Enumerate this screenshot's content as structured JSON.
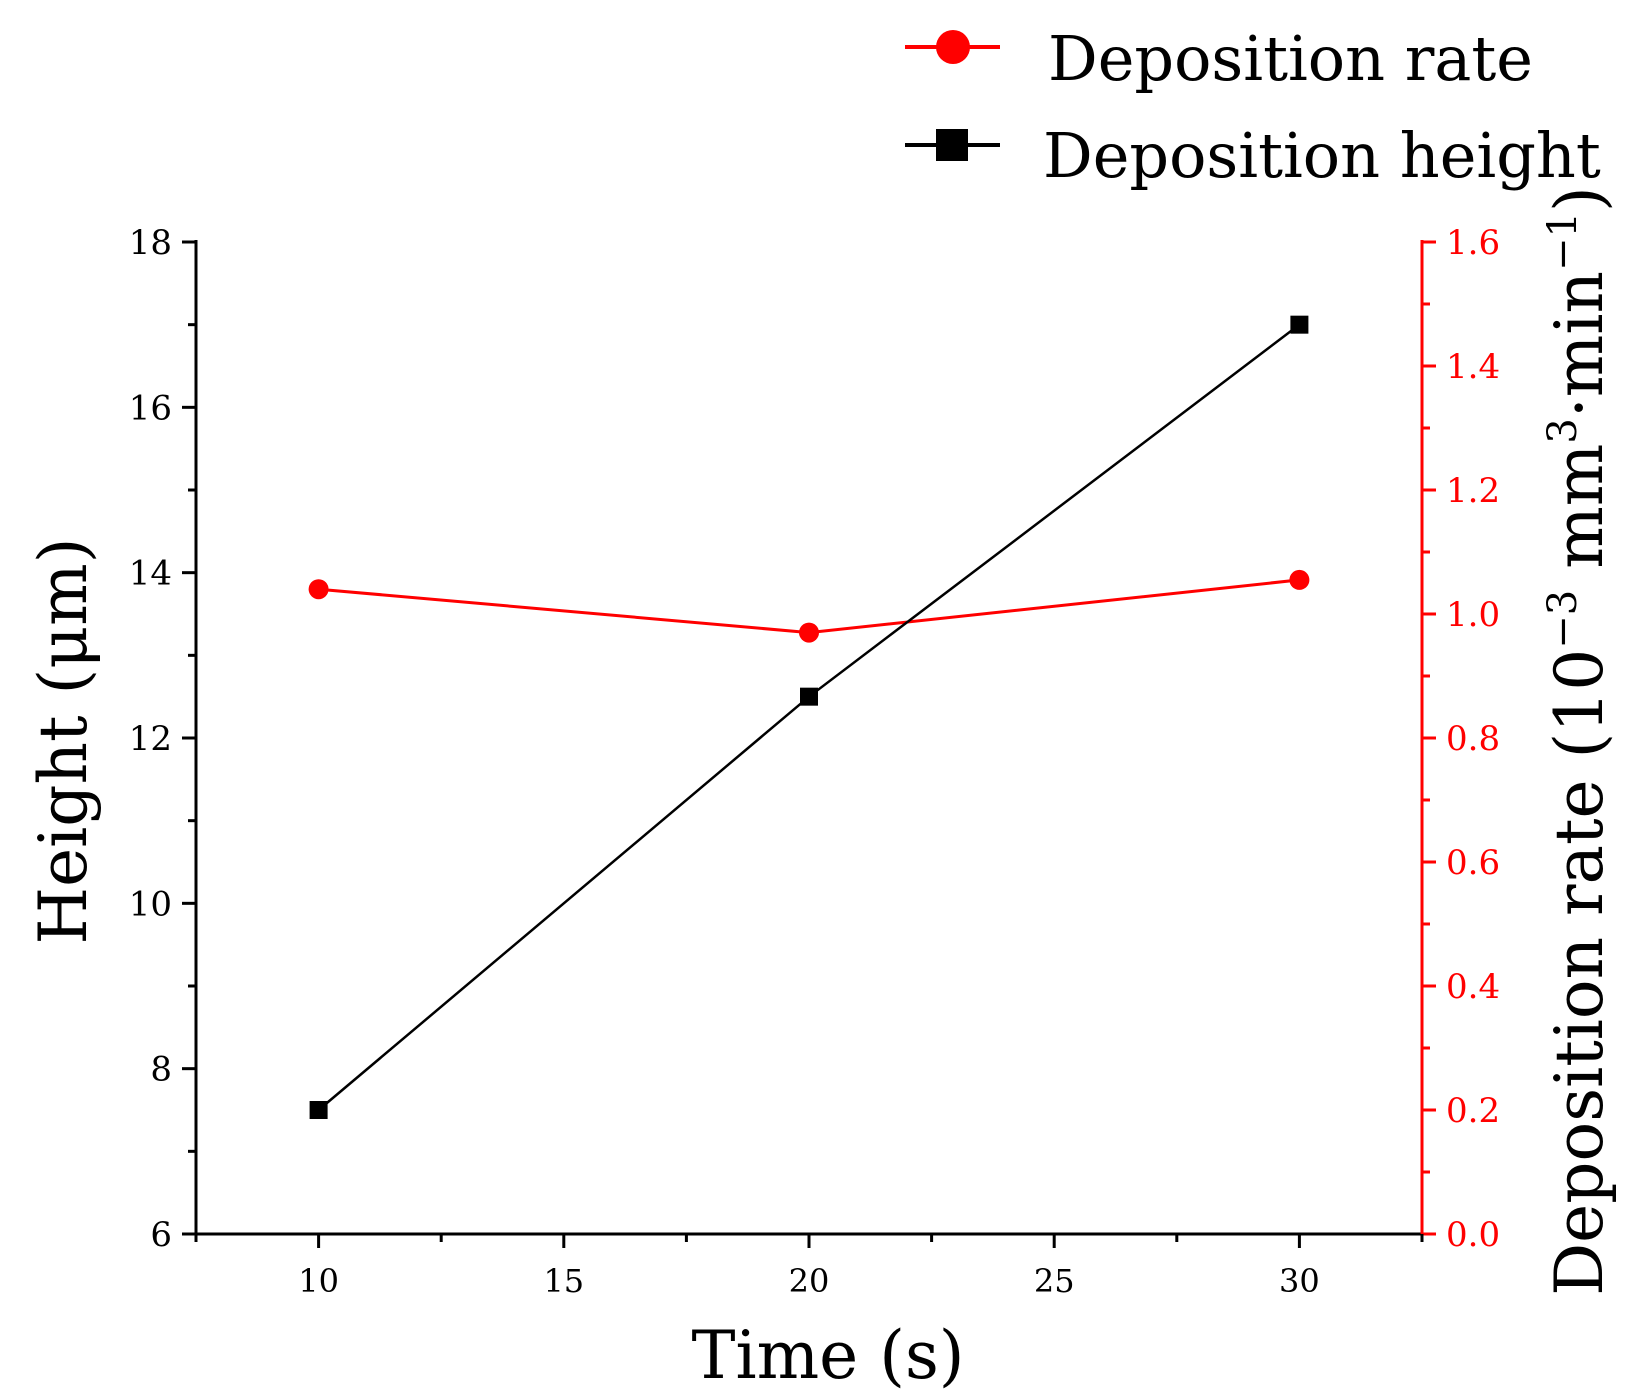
{
  "chart_data": {
    "type": "line",
    "title": "",
    "xlabel": "Time (s)",
    "ylabel": "Height (μm)",
    "y2label": {
      "prefix": "Deposition rate (10",
      "exp1": "−3",
      "mid": " mm",
      "exp2": "3",
      "mid2": "·min",
      "exp3": "−1",
      "suffix": ")"
    },
    "xlim": [
      7.5,
      32.5
    ],
    "ylim": [
      6,
      18
    ],
    "y2lim": [
      0.0,
      1.6
    ],
    "x_ticks": [
      10,
      15,
      20,
      25,
      30
    ],
    "x_tick_labels": [
      "10",
      "15",
      "20",
      "25",
      "30"
    ],
    "y_ticks": [
      6,
      8,
      10,
      12,
      14,
      16,
      18
    ],
    "y_tick_labels": [
      "6",
      "8",
      "10",
      "12",
      "14",
      "16",
      "18"
    ],
    "y2_ticks": [
      0.0,
      0.2,
      0.4,
      0.6,
      0.8,
      1.0,
      1.2,
      1.4,
      1.6
    ],
    "y2_tick_labels": [
      "0.0",
      "0.2",
      "0.4",
      "0.6",
      "0.8",
      "1.0",
      "1.2",
      "1.4",
      "1.6"
    ],
    "grid": false,
    "legend_position": "top-right",
    "series": [
      {
        "name": "Deposition rate",
        "axis": "right",
        "color": "#ff0000",
        "marker": "circle",
        "x": [
          10,
          20,
          30
        ],
        "values": [
          1.04,
          0.97,
          1.055
        ]
      },
      {
        "name": "Deposition height",
        "axis": "left",
        "color": "#000000",
        "marker": "square",
        "x": [
          10,
          20,
          30
        ],
        "values": [
          7.5,
          12.5,
          17.0
        ]
      }
    ]
  }
}
